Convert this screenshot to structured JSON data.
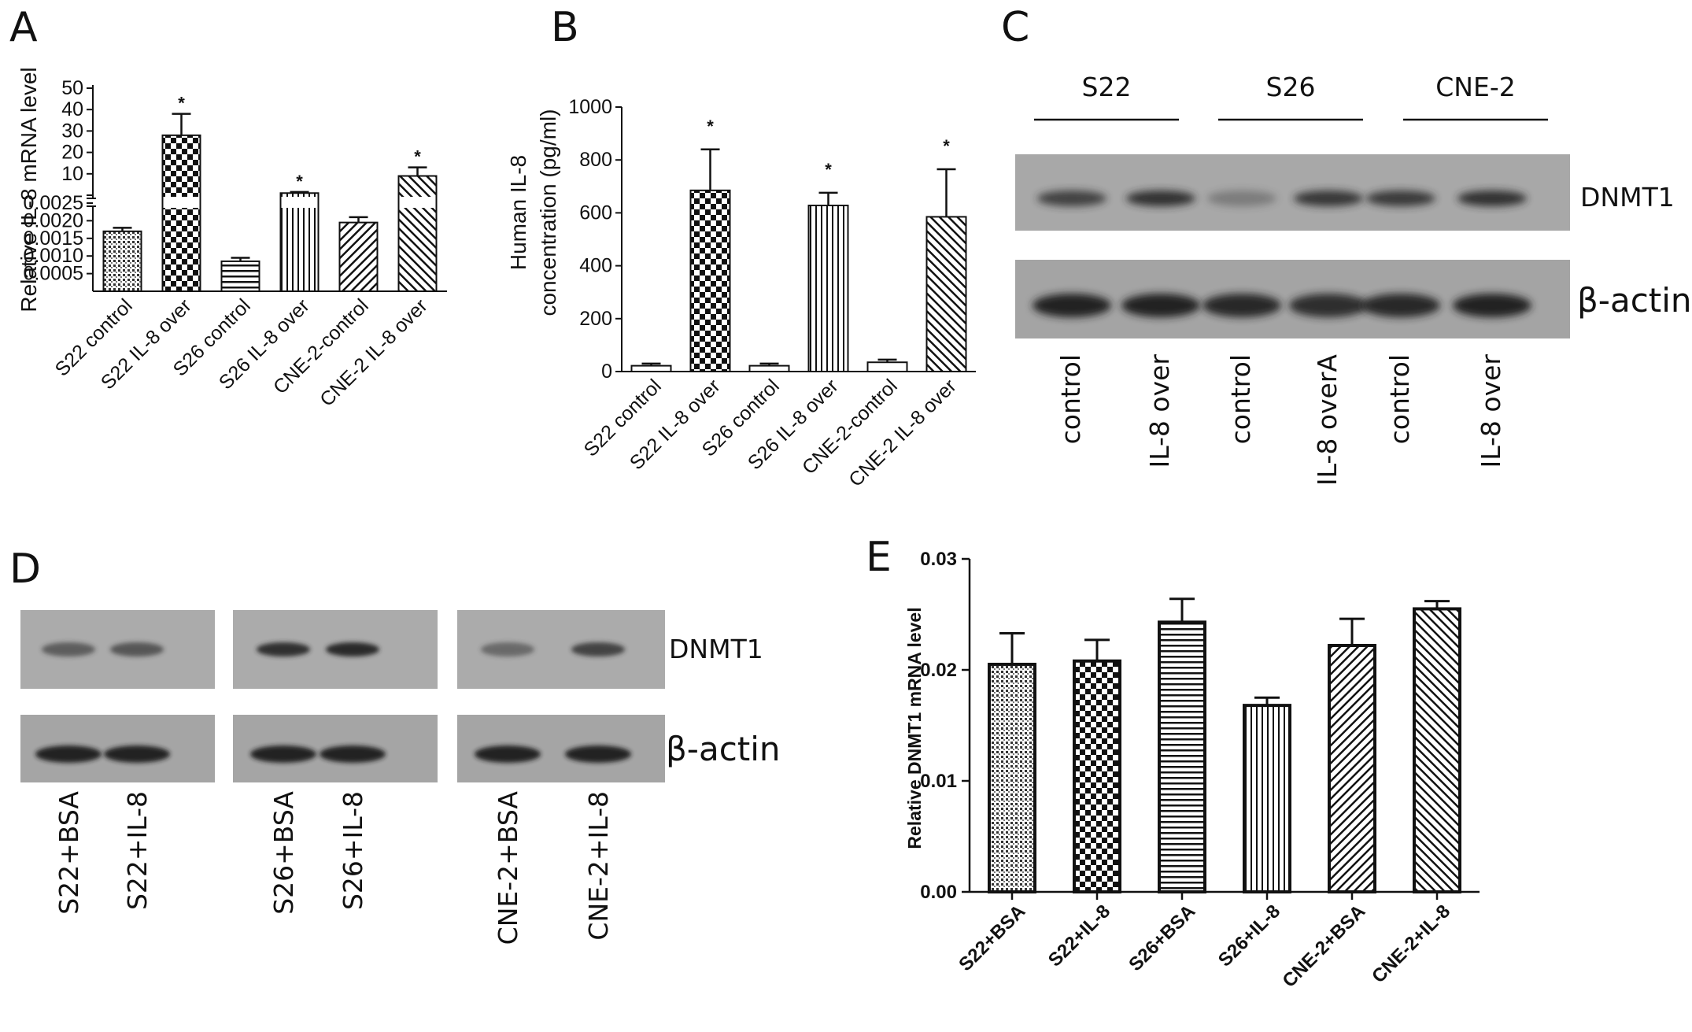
{
  "panels": {
    "A": "A",
    "B": "B",
    "C": "C",
    "D": "D",
    "E": "E"
  },
  "colors": {
    "ink": "#111111",
    "blot_bg": "#a9a9a9",
    "band": "#2a2a2a"
  },
  "chart_data": [
    {
      "panel": "A",
      "type": "bar",
      "broken_axis": true,
      "ylabel": "Relative IL-8 mRNA level",
      "categories": [
        "S22 control",
        "S22 IL-8 over",
        "S26 control",
        "S26 IL-8 over",
        "CNE-2-control",
        "CNE-2 IL-8 over"
      ],
      "values": [
        0.0017,
        28,
        0.00085,
        1,
        0.00195,
        9
      ],
      "errors": [
        0.0001,
        10,
        0.0001,
        0.5,
        0.00015,
        4
      ],
      "significant": [
        false,
        true,
        false,
        true,
        false,
        true
      ],
      "lower_ticks": [
        "0.0005",
        "0.0010",
        "0.0015",
        "0.0020",
        "0.0025"
      ],
      "lower_ylim": [
        0,
        0.0025
      ],
      "upper_ticks": [
        "10",
        "20",
        "30",
        "40",
        "50"
      ],
      "upper_ylim": [
        0,
        50
      ],
      "patterns": [
        "dots",
        "checker",
        "hlines",
        "vlines",
        "diag",
        "diag2"
      ]
    },
    {
      "panel": "B",
      "type": "bar",
      "ylabel": "Human IL-8\nconcentration (pg/ml)",
      "ylabel_lines": [
        "Human IL-8",
        "concentration (pg/ml)"
      ],
      "categories": [
        "S22 control",
        "S22 IL-8 over",
        "S26 control",
        "S26 IL-8 over",
        "CNE-2-control",
        "CNE-2 IL-8 over"
      ],
      "values": [
        22,
        685,
        22,
        628,
        35,
        585
      ],
      "errors": [
        8,
        155,
        8,
        48,
        10,
        180
      ],
      "significant": [
        false,
        true,
        false,
        true,
        false,
        true
      ],
      "ticks": [
        "0",
        "200",
        "400",
        "600",
        "800",
        "1000"
      ],
      "ylim": [
        0,
        1000
      ],
      "patterns": [
        "white",
        "checker",
        "white",
        "vlines",
        "white",
        "diag2"
      ]
    },
    {
      "panel": "E",
      "type": "bar",
      "ylabel": "Relative DNMT1 mRNA level",
      "categories": [
        "S22+BSA",
        "S22+IL-8",
        "S26+BSA",
        "S26+IL-8",
        "CNE-2+BSA",
        "CNE-2+IL-8"
      ],
      "values": [
        0.0205,
        0.0208,
        0.0243,
        0.0168,
        0.0222,
        0.0255
      ],
      "errors": [
        0.0028,
        0.0019,
        0.0021,
        0.0007,
        0.0024,
        0.0007
      ],
      "ticks": [
        "0.00",
        "0.01",
        "0.02",
        "0.03"
      ],
      "ylim": [
        0,
        0.03
      ],
      "patterns": [
        "dots",
        "checker",
        "hlines",
        "vlines",
        "diag",
        "diag2"
      ]
    }
  ],
  "blot_c": {
    "groups": [
      "S22",
      "S26",
      "CNE-2"
    ],
    "row_labels": [
      "DNMT1",
      "β-actin"
    ],
    "lanes": [
      "control",
      "IL-8 over",
      "control",
      "IL-8 overA",
      "control",
      "IL-8 over"
    ]
  },
  "blot_d": {
    "row_labels": [
      "DNMT1",
      "β-actin"
    ],
    "lanes": [
      "S22+BSA",
      "S22+IL-8",
      "S26+BSA",
      "S26+IL-8",
      "CNE-2+BSA",
      "CNE-2+IL-8"
    ]
  }
}
